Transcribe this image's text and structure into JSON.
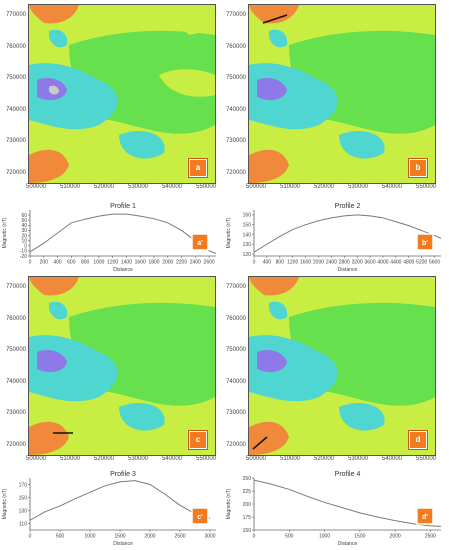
{
  "panels": [
    {
      "label": "a",
      "x_ticks": [
        "500000",
        "510000",
        "520000",
        "530000",
        "540000",
        "550000"
      ],
      "y_ticks": [
        "770000",
        "760000",
        "750000",
        "740000",
        "730000",
        "720000"
      ]
    },
    {
      "label": "b",
      "x_ticks": [
        "500000",
        "510000",
        "520000",
        "530000",
        "540000",
        "550000"
      ],
      "y_ticks": [
        "770000",
        "760000",
        "750000",
        "740000",
        "730000",
        "720000"
      ]
    },
    {
      "label": "c",
      "x_ticks": [
        "500000",
        "510000",
        "520000",
        "530000",
        "540000",
        "550000"
      ],
      "y_ticks": [
        "770000",
        "760000",
        "750000",
        "740000",
        "730000",
        "720000"
      ]
    },
    {
      "label": "d",
      "x_ticks": [
        "500000",
        "510000",
        "520000",
        "530000",
        "540000",
        "550000"
      ],
      "y_ticks": [
        "770000",
        "760000",
        "750000",
        "740000",
        "730000",
        "720000"
      ]
    }
  ],
  "chart_data": [
    {
      "type": "line",
      "title": "Profile 1",
      "xlabel": "Distance",
      "ylabel": "Magnetic (nT)",
      "badge": "a'",
      "x": [
        0,
        200,
        400,
        600,
        800,
        1000,
        1200,
        1400,
        1600,
        1800,
        2000,
        2200,
        2400,
        2600,
        2700
      ],
      "y": [
        -12,
        5,
        25,
        45,
        52,
        58,
        62,
        62,
        58,
        53,
        45,
        30,
        10,
        -10,
        -15
      ],
      "xlim": [
        0,
        2700
      ],
      "ylim": [
        -20,
        70
      ],
      "x_ticks": [
        "0",
        "200",
        "400",
        "600",
        "800",
        "1000",
        "1200",
        "1400",
        "1600",
        "1800",
        "2000",
        "2200",
        "2400",
        "2600"
      ],
      "y_ticks": [
        "60",
        "50",
        "40",
        "30",
        "20",
        "10",
        "0",
        "-10",
        "-20"
      ],
      "x_tick_values": [
        0,
        200,
        400,
        600,
        800,
        1000,
        1200,
        1400,
        1600,
        1800,
        2000,
        2200,
        2400,
        2600
      ],
      "y_tick_values": [
        60,
        50,
        40,
        30,
        20,
        10,
        0,
        -10,
        -20
      ]
    },
    {
      "type": "line",
      "title": "Profile 2",
      "xlabel": "Distance",
      "ylabel": "Magnetic (nT)",
      "badge": "b'",
      "x": [
        0,
        400,
        800,
        1200,
        1600,
        2000,
        2400,
        2800,
        3200,
        3600,
        4000,
        4400,
        4800,
        5200,
        5600,
        5800
      ],
      "y": [
        122,
        130,
        138,
        145,
        150,
        154,
        157,
        159,
        160,
        159,
        157,
        153,
        149,
        144,
        139,
        136
      ],
      "xlim": [
        0,
        5800
      ],
      "ylim": [
        118,
        165
      ],
      "x_ticks": [
        "0",
        "400",
        "800",
        "1200",
        "1600",
        "2000",
        "2400",
        "2800",
        "3200",
        "3600",
        "4000",
        "4400",
        "4800",
        "5200",
        "5600"
      ],
      "y_ticks": [
        "160",
        "150",
        "140",
        "130",
        "120"
      ],
      "x_tick_values": [
        0,
        400,
        800,
        1200,
        1600,
        2000,
        2400,
        2800,
        3200,
        3600,
        4000,
        4400,
        4800,
        5200,
        5600
      ],
      "y_tick_values": [
        160,
        150,
        140,
        130,
        120
      ]
    },
    {
      "type": "line",
      "title": "Profile 3",
      "xlabel": "Distance",
      "ylabel": "Magnetic (nT)",
      "badge": "c'",
      "x": [
        0,
        250,
        500,
        750,
        1000,
        1250,
        1500,
        1750,
        2000,
        2250,
        2500,
        2750,
        3000
      ],
      "y": [
        115,
        128,
        137,
        148,
        158,
        168,
        174,
        176,
        170,
        155,
        138,
        125,
        118
      ],
      "xlim": [
        0,
        3100
      ],
      "ylim": [
        100,
        180
      ],
      "x_ticks": [
        "0",
        "500",
        "1000",
        "1500",
        "2000",
        "2500",
        "3000"
      ],
      "y_ticks": [
        "170",
        "150",
        "130",
        "110"
      ],
      "x_tick_values": [
        0,
        500,
        1000,
        1500,
        2000,
        2500,
        3000
      ],
      "y_tick_values": [
        170,
        150,
        130,
        110
      ]
    },
    {
      "type": "line",
      "title": "Profile 4",
      "xlabel": "Distance",
      "ylabel": "Magnetic (nT)",
      "badge": "d'",
      "x": [
        0,
        250,
        500,
        750,
        1000,
        1250,
        1500,
        1750,
        2000,
        2250,
        2500,
        2650
      ],
      "y": [
        246,
        238,
        228,
        215,
        203,
        193,
        183,
        175,
        168,
        162,
        158,
        157
      ],
      "xlim": [
        0,
        2650
      ],
      "ylim": [
        150,
        250
      ],
      "x_ticks": [
        "0",
        "500",
        "1000",
        "1500",
        "2000",
        "2500"
      ],
      "y_ticks": [
        "250",
        "225",
        "200",
        "175",
        "150"
      ],
      "x_tick_values": [
        0,
        500,
        1000,
        1500,
        2000,
        2500
      ],
      "y_tick_values": [
        250,
        225,
        200,
        175,
        150
      ]
    }
  ],
  "colors": {
    "line": "#7a7a7a",
    "axis": "#666666",
    "grid": "#dddddd",
    "badge": "#f47a20",
    "map_green": "#55dd44",
    "map_yellow": "#c8ee44",
    "map_cyan": "#4fd6d0",
    "map_orange": "#f08a3a"
  }
}
